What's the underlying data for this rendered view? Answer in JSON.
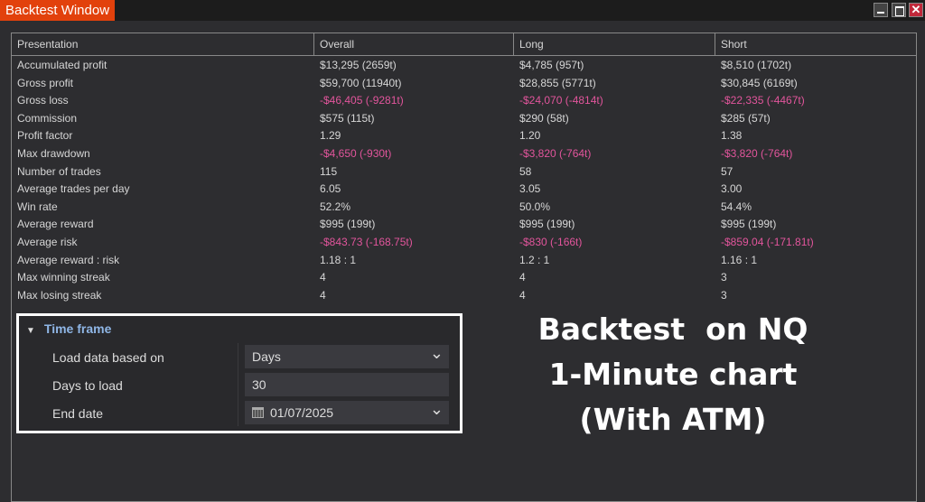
{
  "window": {
    "title": "Backtest Window",
    "close_glyph": "✕"
  },
  "table": {
    "headers": [
      "Presentation",
      "Overall",
      "Long",
      "Short"
    ],
    "rows": [
      {
        "label": "Accumulated profit",
        "overall": "$13,295 (2659t)",
        "long": "$4,785 (957t)",
        "short": "$8,510 (1702t)",
        "negative": false
      },
      {
        "label": "Gross profit",
        "overall": "$59,700 (11940t)",
        "long": "$28,855 (5771t)",
        "short": "$30,845 (6169t)",
        "negative": false
      },
      {
        "label": "Gross loss",
        "overall": "-$46,405 (-9281t)",
        "long": "-$24,070 (-4814t)",
        "short": "-$22,335 (-4467t)",
        "negative": true
      },
      {
        "label": "Commission",
        "overall": "$575 (115t)",
        "long": "$290 (58t)",
        "short": "$285 (57t)",
        "negative": false
      },
      {
        "label": "Profit factor",
        "overall": "1.29",
        "long": "1.20",
        "short": "1.38",
        "negative": false
      },
      {
        "label": "Max drawdown",
        "overall": "-$4,650 (-930t)",
        "long": "-$3,820 (-764t)",
        "short": "-$3,820 (-764t)",
        "negative": true
      },
      {
        "label": "Number of trades",
        "overall": "115",
        "long": "58",
        "short": "57",
        "negative": false
      },
      {
        "label": "Average trades per day",
        "overall": "6.05",
        "long": "3.05",
        "short": "3.00",
        "negative": false
      },
      {
        "label": "Win rate",
        "overall": "52.2%",
        "long": "50.0%",
        "short": "54.4%",
        "negative": false
      },
      {
        "label": "Average reward",
        "overall": "$995 (199t)",
        "long": "$995 (199t)",
        "short": "$995 (199t)",
        "negative": false
      },
      {
        "label": "Average risk",
        "overall": "-$843.73 (-168.75t)",
        "long": "-$830 (-166t)",
        "short": "-$859.04 (-171.81t)",
        "negative": true
      },
      {
        "label": "Average reward : risk",
        "overall": "1.18 : 1",
        "long": "1.2 : 1",
        "short": "1.16 : 1",
        "negative": false
      },
      {
        "label": "Max winning streak",
        "overall": "4",
        "long": "4",
        "short": "3",
        "negative": false
      },
      {
        "label": "Max losing streak",
        "overall": "4",
        "long": "4",
        "short": "3",
        "negative": false
      }
    ]
  },
  "time_frame": {
    "title": "Time frame",
    "load_label": "Load data based on",
    "load_value": "Days",
    "days_label": "Days to load",
    "days_value": "30",
    "end_label": "End date",
    "end_value": "01/07/2025"
  },
  "overlay": {
    "line1": "Backtest  on NQ",
    "line2": "1-Minute chart",
    "line3": "(With ATM)"
  },
  "colors": {
    "accent": "#e2410c",
    "negative": "#e2559c",
    "section": "#8fb6e6"
  }
}
